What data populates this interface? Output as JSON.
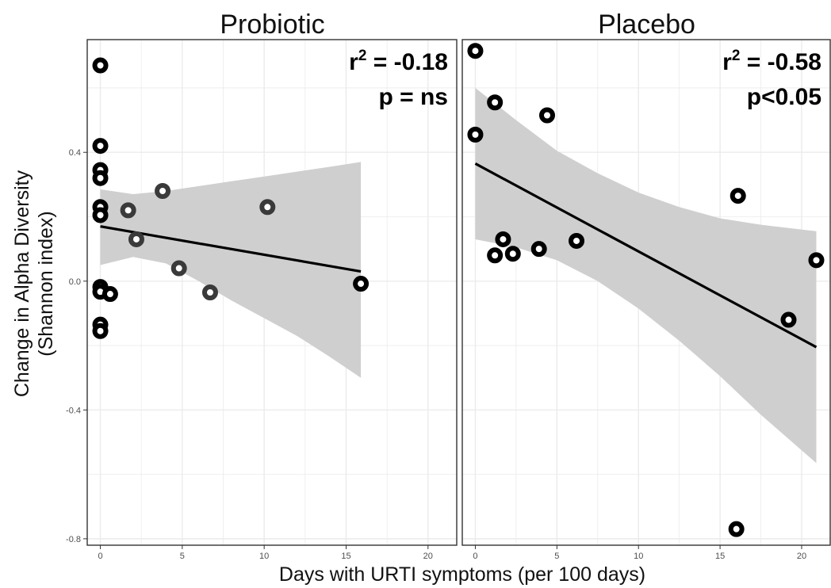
{
  "chart_data": {
    "type": "scatter",
    "xlabel": "Days with URTI symptoms (per 100 days)",
    "ylabel_lines": [
      "Change in Alpha Diversity",
      "(Shannon index)"
    ],
    "xlim": [
      -0.8,
      21.8
    ],
    "ylim": [
      -0.82,
      0.75
    ],
    "x_ticks": [
      0,
      5,
      10,
      15,
      20
    ],
    "y_ticks": [
      -0.8,
      -0.4,
      0.0,
      0.4
    ],
    "x_tick_labels": [
      "0",
      "5",
      "10",
      "15",
      "20"
    ],
    "y_tick_labels": [
      "-0.8",
      "-0.4",
      "0.0",
      "0.4"
    ],
    "grid": true,
    "panels": [
      {
        "title": "Probiotic",
        "annotation_r2_prefix": "r",
        "annotation_r2_sup": "2",
        "annotation_r2_value": " = -0.18",
        "annotation_p": "p = ns",
        "points": [
          {
            "x": 0.0,
            "y": 0.67
          },
          {
            "x": 0.0,
            "y": 0.42
          },
          {
            "x": 0.0,
            "y": 0.345
          },
          {
            "x": 0.0,
            "y": 0.32
          },
          {
            "x": 0.0,
            "y": 0.23
          },
          {
            "x": 0.0,
            "y": 0.205
          },
          {
            "x": 0.0,
            "y": -0.018
          },
          {
            "x": 0.0,
            "y": -0.033
          },
          {
            "x": 0.6,
            "y": -0.04
          },
          {
            "x": 0.0,
            "y": -0.135
          },
          {
            "x": 0.0,
            "y": -0.155
          },
          {
            "x": 1.7,
            "y": 0.22
          },
          {
            "x": 2.2,
            "y": 0.13
          },
          {
            "x": 3.8,
            "y": 0.28
          },
          {
            "x": 4.8,
            "y": 0.04
          },
          {
            "x": 6.7,
            "y": -0.035
          },
          {
            "x": 10.2,
            "y": 0.23
          },
          {
            "x": 15.9,
            "y": -0.008
          }
        ],
        "fit": {
          "x": [
            0,
            15.9
          ],
          "y": [
            0.17,
            0.03
          ]
        },
        "ci_upper": [
          {
            "x": 0,
            "y": 0.285
          },
          {
            "x": 2,
            "y": 0.27
          },
          {
            "x": 4,
            "y": 0.28
          },
          {
            "x": 6,
            "y": 0.295
          },
          {
            "x": 8,
            "y": 0.31
          },
          {
            "x": 10,
            "y": 0.325
          },
          {
            "x": 12,
            "y": 0.34
          },
          {
            "x": 14,
            "y": 0.355
          },
          {
            "x": 15.9,
            "y": 0.37
          }
        ],
        "ci_lower": [
          {
            "x": 0,
            "y": 0.05
          },
          {
            "x": 2,
            "y": 0.075
          },
          {
            "x": 4,
            "y": 0.055
          },
          {
            "x": 6,
            "y": 0.0
          },
          {
            "x": 8,
            "y": -0.06
          },
          {
            "x": 10,
            "y": -0.115
          },
          {
            "x": 12,
            "y": -0.17
          },
          {
            "x": 14,
            "y": -0.235
          },
          {
            "x": 15.9,
            "y": -0.3
          }
        ]
      },
      {
        "title": "Placebo",
        "annotation_r2_prefix": "r",
        "annotation_r2_sup": "2",
        "annotation_r2_value": " = -0.58",
        "annotation_p": "p<0.05",
        "points": [
          {
            "x": 0.0,
            "y": 0.715
          },
          {
            "x": 0.0,
            "y": 0.455
          },
          {
            "x": 1.2,
            "y": 0.555
          },
          {
            "x": 4.4,
            "y": 0.515
          },
          {
            "x": 1.7,
            "y": 0.13
          },
          {
            "x": 1.2,
            "y": 0.08
          },
          {
            "x": 2.3,
            "y": 0.085
          },
          {
            "x": 3.9,
            "y": 0.1
          },
          {
            "x": 6.2,
            "y": 0.125
          },
          {
            "x": 16.1,
            "y": 0.265
          },
          {
            "x": 20.9,
            "y": 0.065
          },
          {
            "x": 19.2,
            "y": -0.12
          },
          {
            "x": 16.0,
            "y": -0.77
          }
        ],
        "fit": {
          "x": [
            0,
            20.9
          ],
          "y": [
            0.365,
            -0.205
          ]
        },
        "ci_upper": [
          {
            "x": 0,
            "y": 0.6
          },
          {
            "x": 2.5,
            "y": 0.5
          },
          {
            "x": 5,
            "y": 0.405
          },
          {
            "x": 7.5,
            "y": 0.335
          },
          {
            "x": 10,
            "y": 0.275
          },
          {
            "x": 12.5,
            "y": 0.23
          },
          {
            "x": 15,
            "y": 0.195
          },
          {
            "x": 17.5,
            "y": 0.175
          },
          {
            "x": 20.9,
            "y": 0.155
          }
        ],
        "ci_lower": [
          {
            "x": 0,
            "y": 0.13
          },
          {
            "x": 2.5,
            "y": 0.105
          },
          {
            "x": 5,
            "y": 0.065
          },
          {
            "x": 7.5,
            "y": 0.0
          },
          {
            "x": 10,
            "y": -0.085
          },
          {
            "x": 12.5,
            "y": -0.185
          },
          {
            "x": 15,
            "y": -0.295
          },
          {
            "x": 17.5,
            "y": -0.415
          },
          {
            "x": 20.9,
            "y": -0.565
          }
        ]
      }
    ]
  },
  "colors": {
    "point_ring": "#000000",
    "point_ring_light": "#3a3a3a",
    "point_center": "#ffffff",
    "ci_band": "#cfcfcf",
    "fit_line": "#000000",
    "grid": "#ebebeb",
    "panel_border": "#333333"
  }
}
